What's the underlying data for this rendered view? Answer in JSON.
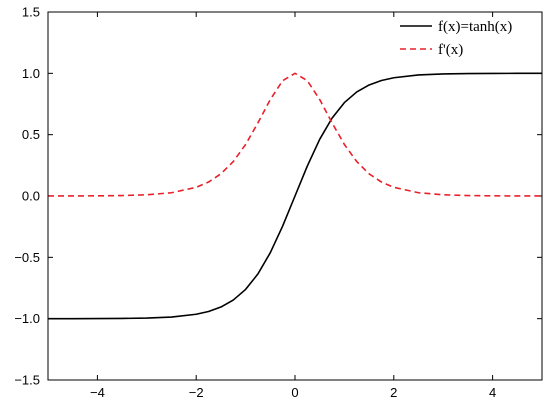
{
  "chart_data": {
    "type": "line",
    "title": "",
    "xlabel": "",
    "ylabel": "",
    "xlim": [
      -5,
      5
    ],
    "ylim": [
      -1.5,
      1.5
    ],
    "grid": false,
    "legend_position": "top-right",
    "x_ticks": [
      -4,
      -2,
      0,
      2,
      4
    ],
    "x_tick_labels": [
      "−4",
      "−2",
      "0",
      "2",
      "4"
    ],
    "y_ticks": [
      -1.5,
      -1.0,
      -0.5,
      0.0,
      0.5,
      1.0,
      1.5
    ],
    "y_tick_labels": [
      "−1.5",
      "−1.0",
      "−0.5",
      "0.0",
      "0.5",
      "1.0",
      "1.5"
    ],
    "x": [
      -5,
      -4.5,
      -4,
      -3.5,
      -3,
      -2.5,
      -2,
      -1.75,
      -1.5,
      -1.25,
      -1,
      -0.75,
      -0.5,
      -0.25,
      0,
      0.25,
      0.5,
      0.75,
      1,
      1.25,
      1.5,
      1.75,
      2,
      2.5,
      3,
      3.5,
      4,
      4.5,
      5
    ],
    "series": [
      {
        "name": "f(x)=tanh(x)",
        "color": "#000000",
        "dash": "solid",
        "values": [
          -0.9999,
          -0.9998,
          -0.9993,
          -0.9982,
          -0.9951,
          -0.9866,
          -0.964,
          -0.9414,
          -0.9051,
          -0.8483,
          -0.7616,
          -0.6351,
          -0.4621,
          -0.2449,
          0,
          0.2449,
          0.4621,
          0.6351,
          0.7616,
          0.8483,
          0.9051,
          0.9414,
          0.964,
          0.9866,
          0.9951,
          0.9982,
          0.9993,
          0.9998,
          0.9999
        ]
      },
      {
        "name": "f'(x)",
        "color": "#e8202a",
        "dash": "dashed",
        "values": [
          0.0002,
          0.0005,
          0.0013,
          0.0036,
          0.0099,
          0.0266,
          0.0707,
          0.1138,
          0.1807,
          0.2804,
          0.42,
          0.5966,
          0.7864,
          0.94,
          1.0,
          0.94,
          0.7864,
          0.5966,
          0.42,
          0.2804,
          0.1807,
          0.1138,
          0.0707,
          0.0266,
          0.0099,
          0.0036,
          0.0013,
          0.0005,
          0.0002
        ]
      }
    ]
  }
}
